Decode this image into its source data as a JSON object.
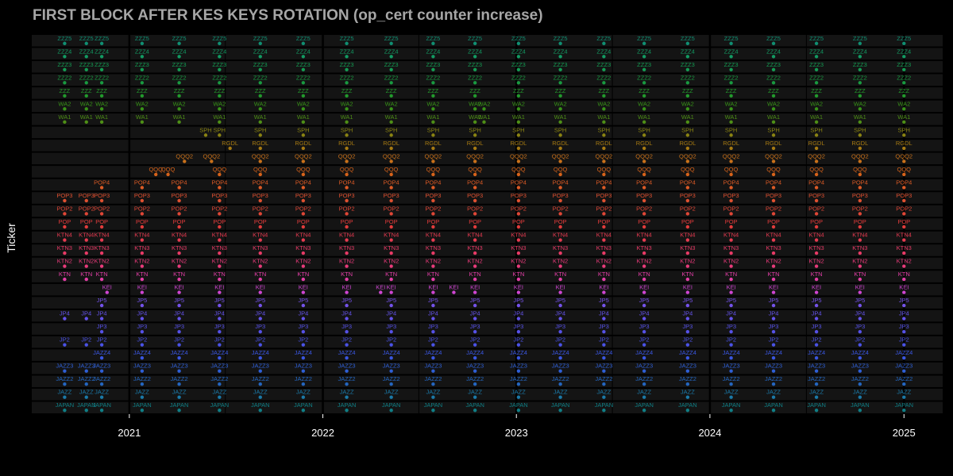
{
  "chart_data": {
    "type": "scatter",
    "title": "FIRST BLOCK AFTER KES KEYS ROTATION (op_cert counter increase)",
    "xlabel": "",
    "ylabel": "Ticker",
    "x_ticks": [
      "2021",
      "2022",
      "2023",
      "2024",
      "2025"
    ],
    "xlim": [
      "2020-07-01",
      "2025-03-15"
    ],
    "grid": true,
    "legend": "none",
    "background": "#141414",
    "panel_color": "#000000",
    "tickers": [
      "JAPAN",
      "JAZZ",
      "JAZZ2",
      "JAZZ3",
      "JAZZ4",
      "JP2",
      "JP3",
      "JP4",
      "JP5",
      "KEI",
      "KTN",
      "KTN2",
      "KTN3",
      "KTN4",
      "POP",
      "POP2",
      "POP3",
      "POP4",
      "QQQ",
      "QQQ2",
      "RGDL",
      "SPH",
      "WA1",
      "WA2",
      "ZZZ",
      "ZZZ2",
      "ZZZ3",
      "ZZZ4",
      "ZZZ5"
    ],
    "colors": {
      "JAPAN": "#0f7f86",
      "JAZZ": "#1a79a8",
      "JAZZ2": "#2466c0",
      "JAZZ3": "#2e5fd6",
      "JAZZ4": "#3a56e0",
      "JP2": "#4a52e6",
      "JP3": "#5651e8",
      "JP4": "#6452ea",
      "JP5": "#7452ea",
      "KEI": "#cf45d2",
      "KTN": "#e23ea6",
      "KTN2": "#e83a7a",
      "KTN3": "#e83a66",
      "KTN4": "#e63a50",
      "POP": "#e23b3b",
      "POP2": "#e04636",
      "POP3": "#df5030",
      "POP4": "#dc5a25",
      "QQQ": "#d8631a",
      "QQQ2": "#c9711a",
      "RGDL": "#a67a12",
      "SPH": "#8a8312",
      "WA1": "#4e8f16",
      "WA2": "#389318",
      "ZZZ": "#229a2c",
      "ZZZ2": "#199a40",
      "ZZZ3": "#149a52",
      "ZZZ4": "#129a62",
      "ZZZ5": "#108f72"
    },
    "series": [
      {
        "name": "JAPAN",
        "x": [
          "2020-09-01",
          "2020-10-12",
          "2020-11-10",
          "2021-01-25",
          "2021-04-05",
          "2021-06-20",
          "2021-09-05",
          "2021-11-25",
          "2022-02-15",
          "2022-05-10",
          "2022-07-28",
          "2022-10-15",
          "2023-01-05",
          "2023-03-25",
          "2023-06-15",
          "2023-08-30",
          "2023-11-20",
          "2024-02-10",
          "2024-04-30",
          "2024-07-20",
          "2024-10-10",
          "2025-01-01"
        ]
      },
      {
        "name": "JAZZ",
        "x": [
          "2020-09-01",
          "2020-10-12",
          "2020-11-10",
          "2021-01-25",
          "2021-04-05",
          "2021-06-20",
          "2021-09-05",
          "2021-11-25",
          "2022-02-15",
          "2022-05-10",
          "2022-07-28",
          "2022-10-15",
          "2023-01-05",
          "2023-03-25",
          "2023-06-15",
          "2023-08-30",
          "2023-11-20",
          "2024-02-10",
          "2024-04-30",
          "2024-07-20",
          "2024-10-10",
          "2025-01-01"
        ]
      },
      {
        "name": "JAZZ2",
        "x": [
          "2020-09-01",
          "2020-10-12",
          "2020-11-10",
          "2021-01-25",
          "2021-04-05",
          "2021-06-20",
          "2021-09-05",
          "2021-11-25",
          "2022-02-15",
          "2022-05-10",
          "2022-07-28",
          "2022-10-15",
          "2023-01-05",
          "2023-03-25",
          "2023-06-15",
          "2023-08-30",
          "2023-11-20",
          "2024-02-10",
          "2024-04-30",
          "2024-07-20",
          "2024-10-10",
          "2025-01-01"
        ]
      },
      {
        "name": "JAZZ3",
        "x": [
          "2020-09-01",
          "2020-10-12",
          "2020-11-10",
          "2021-01-25",
          "2021-04-05",
          "2021-06-20",
          "2021-09-05",
          "2021-11-25",
          "2022-02-15",
          "2022-05-10",
          "2022-07-28",
          "2022-10-15",
          "2023-01-05",
          "2023-03-25",
          "2023-06-15",
          "2023-08-30",
          "2023-11-20",
          "2024-02-10",
          "2024-04-30",
          "2024-07-20",
          "2024-10-10",
          "2025-01-01"
        ]
      },
      {
        "name": "JAZZ4",
        "x": [
          "2020-11-10",
          "2021-01-25",
          "2021-04-05",
          "2021-06-20",
          "2021-09-05",
          "2021-11-25",
          "2022-02-15",
          "2022-05-10",
          "2022-07-28",
          "2022-10-15",
          "2023-01-05",
          "2023-03-25",
          "2023-06-15",
          "2023-08-30",
          "2023-11-20",
          "2024-02-10",
          "2024-04-30",
          "2024-07-20",
          "2024-10-10",
          "2025-01-01"
        ]
      },
      {
        "name": "JP2",
        "x": [
          "2020-09-01",
          "2020-10-12",
          "2020-11-10",
          "2021-01-25",
          "2021-04-05",
          "2021-06-20",
          "2021-09-05",
          "2021-11-25",
          "2022-02-15",
          "2022-05-10",
          "2022-07-28",
          "2022-10-15",
          "2023-01-05",
          "2023-03-25",
          "2023-06-15",
          "2023-08-30",
          "2023-11-20",
          "2024-02-10",
          "2024-04-30",
          "2024-07-20",
          "2024-10-10",
          "2025-01-01"
        ]
      },
      {
        "name": "JP3",
        "x": [
          "2020-11-10",
          "2021-01-25",
          "2021-04-05",
          "2021-06-20",
          "2021-09-05",
          "2021-11-25",
          "2022-02-15",
          "2022-05-10",
          "2022-07-28",
          "2022-10-15",
          "2023-01-05",
          "2023-03-25",
          "2023-06-15",
          "2023-08-30",
          "2023-11-20",
          "2024-02-10",
          "2024-04-30",
          "2024-07-20",
          "2024-10-10",
          "2025-01-01"
        ]
      },
      {
        "name": "JP4",
        "x": [
          "2020-09-01",
          "2020-10-12",
          "2020-11-10",
          "2021-01-25",
          "2021-04-05",
          "2021-06-20",
          "2021-09-05",
          "2021-11-25",
          "2022-02-15",
          "2022-05-10",
          "2022-07-28",
          "2022-10-15",
          "2023-01-05",
          "2023-03-25",
          "2023-06-15",
          "2023-08-30",
          "2023-11-20",
          "2024-02-10",
          "2024-04-30",
          "2024-07-20",
          "2024-10-10",
          "2025-01-01"
        ]
      },
      {
        "name": "JP5",
        "x": [
          "2020-11-10",
          "2021-01-25",
          "2021-04-05",
          "2021-06-20",
          "2021-09-05",
          "2021-11-25",
          "2022-02-15",
          "2022-05-10",
          "2022-07-28",
          "2022-10-15",
          "2023-01-05",
          "2023-03-25",
          "2023-06-15",
          "2023-08-30",
          "2023-11-20",
          "2024-02-10",
          "2024-04-30",
          "2024-07-20",
          "2024-10-10",
          "2025-01-01"
        ]
      },
      {
        "name": "KEI",
        "x": [
          "2020-11-20",
          "2021-01-25",
          "2021-04-05",
          "2021-06-20",
          "2021-09-05",
          "2021-11-25",
          "2022-02-15",
          "2022-04-20",
          "2022-05-10",
          "2022-07-28",
          "2022-09-05",
          "2022-10-15",
          "2023-01-05",
          "2023-03-25",
          "2023-06-15",
          "2023-08-30",
          "2023-11-20",
          "2024-02-10",
          "2024-04-30",
          "2024-07-20",
          "2024-10-10",
          "2025-01-01"
        ]
      },
      {
        "name": "KTN",
        "x": [
          "2020-09-01",
          "2020-10-12",
          "2020-11-10",
          "2021-01-25",
          "2021-04-05",
          "2021-06-20",
          "2021-09-05",
          "2021-11-25",
          "2022-02-15",
          "2022-05-10",
          "2022-07-28",
          "2022-10-15",
          "2023-01-05",
          "2023-03-25",
          "2023-06-15",
          "2023-08-30",
          "2023-11-20",
          "2024-02-10",
          "2024-04-30",
          "2024-07-20",
          "2024-10-10",
          "2025-01-01"
        ]
      },
      {
        "name": "KTN2",
        "x": [
          "2020-09-01",
          "2020-10-12",
          "2020-11-10",
          "2021-01-25",
          "2021-04-05",
          "2021-06-20",
          "2021-09-05",
          "2021-11-25",
          "2022-02-15",
          "2022-05-10",
          "2022-07-28",
          "2022-10-15",
          "2023-01-05",
          "2023-03-25",
          "2023-06-15",
          "2023-08-30",
          "2023-11-20",
          "2024-02-10",
          "2024-04-30",
          "2024-07-20",
          "2024-10-10",
          "2025-01-01"
        ]
      },
      {
        "name": "KTN3",
        "x": [
          "2020-09-01",
          "2020-10-12",
          "2020-11-10",
          "2021-01-25",
          "2021-04-05",
          "2021-06-20",
          "2021-09-05",
          "2021-11-25",
          "2022-02-15",
          "2022-05-10",
          "2022-07-28",
          "2022-10-15",
          "2023-01-05",
          "2023-03-25",
          "2023-06-15",
          "2023-08-30",
          "2023-11-20",
          "2024-02-10",
          "2024-04-30",
          "2024-07-20",
          "2024-10-10",
          "2025-01-01"
        ]
      },
      {
        "name": "KTN4",
        "x": [
          "2020-09-01",
          "2020-10-12",
          "2020-11-10",
          "2021-01-25",
          "2021-04-05",
          "2021-06-20",
          "2021-09-05",
          "2021-11-25",
          "2022-02-15",
          "2022-05-10",
          "2022-07-28",
          "2022-10-15",
          "2023-01-05",
          "2023-03-25",
          "2023-06-15",
          "2023-08-30",
          "2023-11-20",
          "2024-02-10",
          "2024-04-30",
          "2024-07-20",
          "2024-10-10",
          "2025-01-01"
        ]
      },
      {
        "name": "POP",
        "x": [
          "2020-09-01",
          "2020-10-12",
          "2020-11-10",
          "2021-01-25",
          "2021-04-05",
          "2021-06-20",
          "2021-09-05",
          "2021-11-25",
          "2022-02-15",
          "2022-05-10",
          "2022-07-28",
          "2022-10-15",
          "2023-01-05",
          "2023-03-25",
          "2023-06-15",
          "2023-08-30",
          "2023-11-20",
          "2024-02-10",
          "2024-04-30",
          "2024-07-20",
          "2024-10-10",
          "2025-01-01"
        ]
      },
      {
        "name": "POP2",
        "x": [
          "2020-09-01",
          "2020-10-12",
          "2020-11-10",
          "2021-01-25",
          "2021-04-05",
          "2021-06-20",
          "2021-09-05",
          "2021-11-25",
          "2022-02-15",
          "2022-05-10",
          "2022-07-28",
          "2022-10-15",
          "2023-01-05",
          "2023-03-25",
          "2023-06-15",
          "2023-08-30",
          "2023-11-20",
          "2024-02-10",
          "2024-04-30",
          "2024-07-20",
          "2024-10-10",
          "2025-01-01"
        ]
      },
      {
        "name": "POP3",
        "x": [
          "2020-09-01",
          "2020-10-12",
          "2020-11-10",
          "2021-01-25",
          "2021-04-05",
          "2021-06-20",
          "2021-09-05",
          "2021-11-25",
          "2022-02-15",
          "2022-05-10",
          "2022-07-28",
          "2022-10-15",
          "2023-01-05",
          "2023-03-25",
          "2023-06-15",
          "2023-08-30",
          "2023-11-20",
          "2024-02-10",
          "2024-04-30",
          "2024-07-20",
          "2024-10-10",
          "2025-01-01"
        ]
      },
      {
        "name": "POP4",
        "x": [
          "2020-11-10",
          "2021-01-25",
          "2021-04-05",
          "2021-06-20",
          "2021-09-05",
          "2021-11-25",
          "2022-02-15",
          "2022-05-10",
          "2022-07-28",
          "2022-10-15",
          "2023-01-05",
          "2023-03-25",
          "2023-06-15",
          "2023-08-30",
          "2023-11-20",
          "2024-02-10",
          "2024-04-30",
          "2024-07-20",
          "2024-10-10",
          "2025-01-01"
        ]
      },
      {
        "name": "QQQ",
        "x": [
          "2021-02-20",
          "2021-03-15",
          "2021-06-20",
          "2021-09-05",
          "2021-11-25",
          "2022-02-15",
          "2022-05-10",
          "2022-07-28",
          "2022-10-15",
          "2023-01-05",
          "2023-03-25",
          "2023-06-15",
          "2023-08-30",
          "2023-11-20",
          "2024-02-10",
          "2024-04-30",
          "2024-07-20",
          "2024-10-10",
          "2025-01-01"
        ]
      },
      {
        "name": "QQQ2",
        "x": [
          "2021-04-15",
          "2021-06-05",
          "2021-09-05",
          "2021-11-25",
          "2022-02-15",
          "2022-05-10",
          "2022-07-28",
          "2022-10-15",
          "2023-01-05",
          "2023-03-25",
          "2023-06-15",
          "2023-08-30",
          "2023-11-20",
          "2024-02-10",
          "2024-04-30",
          "2024-07-20",
          "2024-10-10",
          "2025-01-01"
        ]
      },
      {
        "name": "RGDL",
        "x": [
          "2021-07-10",
          "2021-09-05",
          "2021-11-25",
          "2022-02-15",
          "2022-05-10",
          "2022-07-28",
          "2022-10-15",
          "2023-01-05",
          "2023-03-25",
          "2023-06-15",
          "2023-08-30",
          "2023-11-20",
          "2024-02-10",
          "2024-04-30",
          "2024-07-20",
          "2024-10-10",
          "2025-01-01"
        ]
      },
      {
        "name": "SPH",
        "x": [
          "2021-05-25",
          "2021-06-20",
          "2021-09-05",
          "2021-11-25",
          "2022-02-15",
          "2022-05-10",
          "2022-07-28",
          "2022-10-15",
          "2023-01-05",
          "2023-03-25",
          "2023-06-15",
          "2023-08-30",
          "2023-11-20",
          "2024-02-10",
          "2024-04-30",
          "2024-07-20",
          "2024-10-10",
          "2025-01-01"
        ]
      },
      {
        "name": "WA1",
        "x": [
          "2020-09-01",
          "2020-10-12",
          "2020-11-10",
          "2021-01-25",
          "2021-04-05",
          "2021-06-20",
          "2021-09-05",
          "2021-11-25",
          "2022-02-15",
          "2022-05-10",
          "2022-07-28",
          "2022-10-15",
          "2022-11-01",
          "2023-01-05",
          "2023-03-25",
          "2023-06-15",
          "2023-08-30",
          "2023-11-20",
          "2024-02-10",
          "2024-04-30",
          "2024-07-20",
          "2024-10-10",
          "2025-01-01"
        ]
      },
      {
        "name": "WA2",
        "x": [
          "2020-09-01",
          "2020-10-12",
          "2020-11-10",
          "2021-01-25",
          "2021-04-05",
          "2021-06-20",
          "2021-09-05",
          "2021-11-25",
          "2022-02-15",
          "2022-05-10",
          "2022-07-28",
          "2022-10-15",
          "2022-11-01",
          "2023-01-05",
          "2023-03-25",
          "2023-06-15",
          "2023-08-30",
          "2023-11-20",
          "2024-02-10",
          "2024-04-30",
          "2024-07-20",
          "2024-10-10",
          "2025-01-01"
        ]
      },
      {
        "name": "ZZZ",
        "x": [
          "2020-09-01",
          "2020-10-12",
          "2020-11-10",
          "2021-01-25",
          "2021-04-05",
          "2021-06-20",
          "2021-09-05",
          "2021-11-25",
          "2022-02-15",
          "2022-05-10",
          "2022-07-28",
          "2022-10-15",
          "2023-01-05",
          "2023-03-25",
          "2023-06-15",
          "2023-08-30",
          "2023-11-20",
          "2024-02-10",
          "2024-04-30",
          "2024-07-20",
          "2024-10-10",
          "2025-01-01"
        ]
      },
      {
        "name": "ZZZ2",
        "x": [
          "2020-09-01",
          "2020-10-12",
          "2020-11-10",
          "2021-01-25",
          "2021-04-05",
          "2021-06-20",
          "2021-09-05",
          "2021-11-25",
          "2022-02-15",
          "2022-05-10",
          "2022-07-28",
          "2022-10-15",
          "2023-01-05",
          "2023-03-25",
          "2023-06-15",
          "2023-08-30",
          "2023-11-20",
          "2024-02-10",
          "2024-04-30",
          "2024-07-20",
          "2024-10-10",
          "2025-01-01"
        ]
      },
      {
        "name": "ZZZ3",
        "x": [
          "2020-09-01",
          "2020-10-12",
          "2020-11-10",
          "2021-01-25",
          "2021-04-05",
          "2021-06-20",
          "2021-09-05",
          "2021-11-25",
          "2022-02-15",
          "2022-05-10",
          "2022-07-28",
          "2022-10-15",
          "2023-01-05",
          "2023-03-25",
          "2023-06-15",
          "2023-08-30",
          "2023-11-20",
          "2024-02-10",
          "2024-04-30",
          "2024-07-20",
          "2024-10-10",
          "2025-01-01"
        ]
      },
      {
        "name": "ZZZ4",
        "x": [
          "2020-09-01",
          "2020-10-12",
          "2020-11-10",
          "2021-01-25",
          "2021-04-05",
          "2021-06-20",
          "2021-09-05",
          "2021-11-25",
          "2022-02-15",
          "2022-05-10",
          "2022-07-28",
          "2022-10-15",
          "2023-01-05",
          "2023-03-25",
          "2023-06-15",
          "2023-08-30",
          "2023-11-20",
          "2024-02-10",
          "2024-04-30",
          "2024-07-20",
          "2024-10-10",
          "2025-01-01"
        ]
      },
      {
        "name": "ZZZ5",
        "x": [
          "2020-09-01",
          "2020-10-12",
          "2020-11-10",
          "2021-01-25",
          "2021-04-05",
          "2021-06-20",
          "2021-09-05",
          "2021-11-25",
          "2022-02-15",
          "2022-05-10",
          "2022-07-28",
          "2022-10-15",
          "2023-01-05",
          "2023-03-25",
          "2023-06-15",
          "2023-08-30",
          "2023-11-20",
          "2024-02-10",
          "2024-04-30",
          "2024-07-20",
          "2024-10-10",
          "2025-01-01"
        ]
      }
    ]
  }
}
